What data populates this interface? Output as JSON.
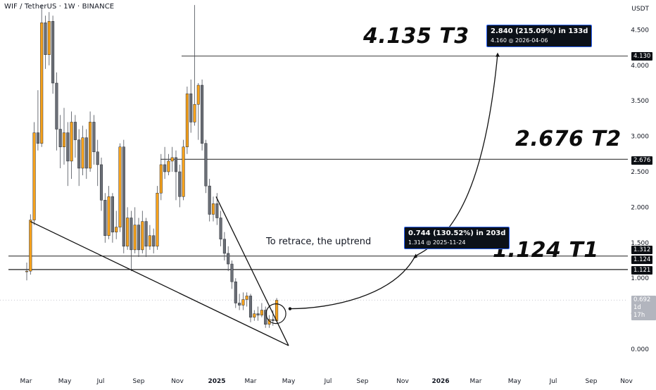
{
  "header": {
    "title": "WIF / TetherUS · 1W · BINANCE",
    "currency": "USDT"
  },
  "annotations": {
    "t3": "4.135 T3",
    "t2": "2.676 T2",
    "t1": "1.124 T1",
    "retrace_note": "To retrace, the uptrend",
    "target1_line1": "0.744 (130.52%) in 203d",
    "target1_line2": "1.314 ◎ 2025-11-24",
    "target3_line1": "2.840 (215.09%) in 133d",
    "target3_line2": "4.160 ◎ 2026-04-06"
  },
  "price_tags": {
    "p4130": "4.130",
    "p2676": "2.676",
    "p1312": "1.312",
    "p1124": "1.124",
    "p1121": "1.121",
    "current": "0.692",
    "countdown": "1d 17h"
  },
  "colors": {
    "up": "#f7a21b",
    "down": "#6b6f77",
    "line": "#111111",
    "accent": "#2962ff"
  },
  "chart_data": {
    "type": "candlestick",
    "title": "WIF / TetherUS · 1W · BINANCE",
    "y_unit": "USDT",
    "ylim": [
      -0.25,
      4.85
    ],
    "y_ticks": [
      "0.000",
      "0.500",
      "1.000",
      "1.500",
      "2.000",
      "2.500",
      "3.000",
      "3.500",
      "4.000",
      "4.500"
    ],
    "x_ticks": [
      "Mar",
      "May",
      "Jul",
      "Sep",
      "Nov",
      "2025",
      "Mar",
      "May",
      "Jul",
      "Sep",
      "Nov",
      "2026",
      "Mar",
      "May",
      "Jul",
      "Sep",
      "Nov"
    ],
    "grid": false,
    "candles": [
      [
        1.1,
        1.1,
        1.22,
        0.97
      ],
      [
        1.1,
        1.82,
        1.9,
        1.05
      ],
      [
        1.82,
        3.05,
        3.2,
        1.75
      ],
      [
        3.05,
        2.9,
        3.65,
        2.8
      ],
      [
        2.9,
        4.6,
        4.85,
        2.85
      ],
      [
        4.6,
        4.15,
        4.7,
        3.95
      ],
      [
        4.15,
        4.62,
        4.75,
        4.0
      ],
      [
        4.62,
        3.75,
        4.7,
        3.6
      ],
      [
        3.75,
        3.1,
        3.9,
        2.8
      ],
      [
        3.1,
        2.85,
        3.3,
        2.55
      ],
      [
        2.85,
        3.05,
        3.4,
        2.6
      ],
      [
        3.05,
        2.65,
        3.2,
        2.3
      ],
      [
        2.65,
        3.2,
        3.35,
        2.4
      ],
      [
        3.2,
        2.95,
        3.3,
        2.7
      ],
      [
        2.95,
        2.55,
        3.1,
        2.3
      ],
      [
        2.55,
        2.98,
        3.15,
        2.45
      ],
      [
        2.98,
        2.55,
        3.1,
        2.4
      ],
      [
        2.55,
        3.2,
        3.35,
        2.5
      ],
      [
        3.2,
        2.78,
        3.3,
        2.6
      ],
      [
        2.78,
        2.6,
        2.95,
        2.3
      ],
      [
        2.6,
        2.1,
        2.7,
        1.95
      ],
      [
        2.1,
        1.6,
        2.2,
        1.5
      ],
      [
        1.6,
        2.15,
        2.3,
        1.55
      ],
      [
        2.15,
        1.65,
        2.2,
        1.5
      ],
      [
        1.65,
        1.72,
        1.95,
        1.55
      ],
      [
        1.72,
        2.85,
        2.9,
        1.65
      ],
      [
        2.85,
        1.45,
        2.95,
        1.35
      ],
      [
        1.45,
        1.85,
        2.0,
        1.4
      ],
      [
        1.85,
        1.4,
        1.95,
        1.1
      ],
      [
        1.4,
        1.75,
        2.0,
        1.35
      ],
      [
        1.75,
        1.4,
        1.85,
        1.3
      ],
      [
        1.4,
        1.8,
        1.95,
        1.35
      ],
      [
        1.8,
        1.45,
        1.85,
        1.3
      ],
      [
        1.45,
        1.6,
        1.75,
        1.4
      ],
      [
        1.6,
        1.45,
        1.7,
        1.35
      ],
      [
        1.45,
        2.2,
        2.3,
        1.4
      ],
      [
        2.2,
        2.6,
        2.75,
        2.1
      ],
      [
        2.6,
        2.5,
        2.85,
        2.4
      ],
      [
        2.5,
        2.65,
        2.75,
        2.45
      ],
      [
        2.65,
        2.7,
        2.85,
        2.5
      ],
      [
        2.7,
        2.5,
        2.8,
        2.1
      ],
      [
        2.5,
        2.15,
        2.6,
        2.0
      ],
      [
        2.15,
        2.85,
        2.95,
        2.1
      ],
      [
        2.85,
        3.6,
        3.7,
        2.75
      ],
      [
        3.6,
        3.2,
        3.8,
        3.05
      ],
      [
        3.2,
        3.45,
        4.85,
        3.15
      ],
      [
        3.45,
        3.72,
        3.75,
        2.95
      ],
      [
        3.72,
        2.9,
        3.8,
        2.8
      ],
      [
        2.9,
        2.3,
        2.95,
        2.2
      ],
      [
        2.3,
        1.9,
        2.4,
        1.8
      ],
      [
        1.9,
        2.05,
        2.15,
        1.8
      ],
      [
        2.05,
        1.85,
        2.2,
        1.75
      ],
      [
        1.85,
        1.55,
        1.95,
        1.45
      ],
      [
        1.55,
        1.35,
        1.65,
        1.25
      ],
      [
        1.35,
        1.2,
        1.45,
        1.1
      ],
      [
        1.2,
        0.95,
        1.25,
        0.85
      ],
      [
        0.95,
        0.65,
        1.0,
        0.58
      ],
      [
        0.65,
        0.62,
        0.78,
        0.55
      ],
      [
        0.62,
        0.7,
        0.8,
        0.55
      ],
      [
        0.7,
        0.75,
        0.8,
        0.6
      ],
      [
        0.75,
        0.45,
        0.78,
        0.38
      ],
      [
        0.45,
        0.5,
        0.55,
        0.4
      ],
      [
        0.5,
        0.48,
        0.6,
        0.4
      ],
      [
        0.48,
        0.55,
        0.65,
        0.45
      ],
      [
        0.55,
        0.35,
        0.6,
        0.3
      ],
      [
        0.35,
        0.42,
        0.48,
        0.3
      ],
      [
        0.42,
        0.4,
        0.55,
        0.33
      ],
      [
        0.4,
        0.69,
        0.72,
        0.38
      ]
    ],
    "horizontal_levels": [
      4.13,
      2.676,
      1.312,
      1.124,
      1.121
    ],
    "targets": [
      {
        "label": "T1",
        "value": 1.124
      },
      {
        "label": "T2",
        "value": 2.676
      },
      {
        "label": "T3",
        "value": 4.135
      }
    ],
    "projections": [
      {
        "change": 0.744,
        "percent": 130.52,
        "days": 203,
        "price": 1.314,
        "date": "2025-11-24"
      },
      {
        "change": 2.84,
        "percent": 215.09,
        "days": 133,
        "price": 4.16,
        "date": "2026-04-06"
      }
    ],
    "current_price": 0.692
  }
}
